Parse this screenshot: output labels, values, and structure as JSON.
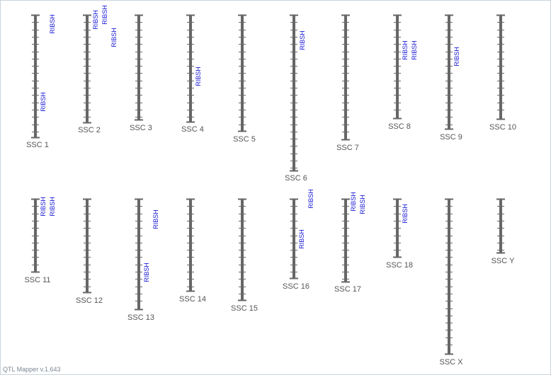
{
  "footer_text": "QTL Mapper v.1.643",
  "colors": {
    "chromosome": "#666666",
    "qtl_label": "#1a1ad6",
    "chromosome_name": "#555555"
  },
  "chromosomes": [
    {
      "name": "SSC 1",
      "qtls": [
        "RIBSH",
        "RIBSH"
      ]
    },
    {
      "name": "SSC 2",
      "qtls": [
        "RIBSH",
        "RIBSH",
        "RIBSH"
      ]
    },
    {
      "name": "SSC 3",
      "qtls": []
    },
    {
      "name": "SSC 4",
      "qtls": [
        "RIBSH"
      ]
    },
    {
      "name": "SSC 5",
      "qtls": []
    },
    {
      "name": "SSC 6",
      "qtls": [
        "RIBSH"
      ]
    },
    {
      "name": "SSC 7",
      "qtls": []
    },
    {
      "name": "SSC 8",
      "qtls": [
        "RIBSH",
        "RIBSH"
      ]
    },
    {
      "name": "SSC 9",
      "qtls": [
        "RIBSH"
      ]
    },
    {
      "name": "SSC 10",
      "qtls": []
    },
    {
      "name": "SSC 11",
      "qtls": [
        "RIBSH",
        "RIBSH"
      ]
    },
    {
      "name": "SSC 12",
      "qtls": []
    },
    {
      "name": "SSC 13",
      "qtls": [
        "RIBSH",
        "RIBSH"
      ]
    },
    {
      "name": "SSC 14",
      "qtls": []
    },
    {
      "name": "SSC 15",
      "qtls": []
    },
    {
      "name": "SSC 16",
      "qtls": [
        "RIBSH",
        "RIBSH"
      ]
    },
    {
      "name": "SSC 17",
      "qtls": [
        "RIBSH",
        "RIBSH"
      ]
    },
    {
      "name": "SSC 18",
      "qtls": [
        "RIBSH"
      ]
    },
    {
      "name": "SSC X",
      "qtls": []
    },
    {
      "name": "SSC Y",
      "qtls": []
    }
  ]
}
